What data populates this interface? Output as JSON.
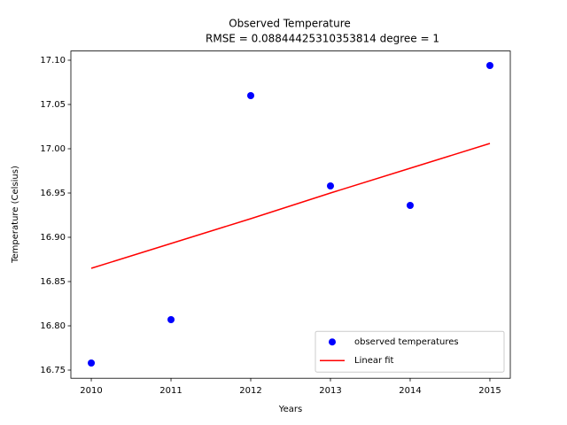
{
  "chart_data": {
    "type": "scatter",
    "title": "Observed Temperature",
    "subtitle": "RMSE = 0.08844425310353814 degree = 1",
    "x_label": "Years",
    "y_label": "Temperature (Celsius)",
    "x": [
      2010,
      2011,
      2012,
      2013,
      2014,
      2015
    ],
    "series": [
      {
        "name": "observed temperatures",
        "color": "#0000ff",
        "type": "scatter",
        "values": [
          16.758,
          16.807,
          17.06,
          16.958,
          16.936,
          17.094
        ]
      },
      {
        "name": "Linear fit",
        "color": "#ff0000",
        "type": "line",
        "values": [
          16.865,
          16.893,
          16.921,
          16.95,
          16.978,
          17.006
        ]
      }
    ],
    "xlim": [
      2009.744,
      2015.256
    ],
    "ylim": [
      16.7408,
      17.1104
    ],
    "xticks": [
      2010,
      2011,
      2012,
      2013,
      2014,
      2015
    ],
    "yticks": [
      16.75,
      {
        "value": 16.8,
        "label": "16.80"
      },
      16.85,
      {
        "value": 16.9,
        "label": "16.90"
      },
      16.95,
      {
        "value": 17.0,
        "label": "17.00"
      },
      17.05,
      {
        "value": 17.1,
        "label": "17.10"
      }
    ],
    "grid": false,
    "legend": "lower right"
  }
}
